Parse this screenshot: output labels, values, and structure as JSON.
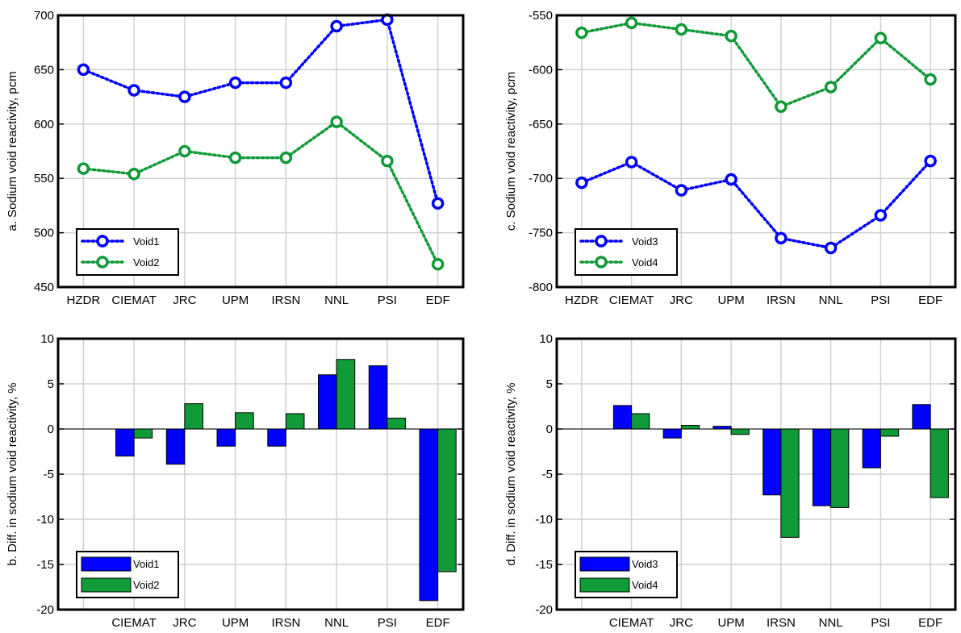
{
  "colors": {
    "series1": "#0000ff",
    "series2": "#119a38",
    "grid": "#d0d0d0",
    "axis": "#000000"
  },
  "chart_data": [
    {
      "id": "a",
      "type": "line",
      "ylabel": "a. Sodium void reactivity, pcm",
      "categories": [
        "HZDR",
        "CIEMAT",
        "JRC",
        "UPM",
        "IRSN",
        "NNL",
        "PSI",
        "EDF"
      ],
      "ylim": [
        450,
        700
      ],
      "yticks": [
        450,
        500,
        550,
        600,
        650,
        700
      ],
      "grid": true,
      "legend_position": "bottom-left",
      "series": [
        {
          "name": "Void1",
          "values": [
            650,
            631,
            625,
            638,
            638,
            690,
            696,
            527
          ]
        },
        {
          "name": "Void2",
          "values": [
            559,
            554,
            575,
            569,
            569,
            602,
            566,
            471
          ]
        }
      ]
    },
    {
      "id": "c",
      "type": "line",
      "ylabel": "c. Sodium void reactivity, pcm",
      "categories": [
        "HZDR",
        "CIEMAT",
        "JRC",
        "UPM",
        "IRSN",
        "NNL",
        "PSI",
        "EDF"
      ],
      "ylim": [
        -800,
        -550
      ],
      "yticks": [
        -800,
        -750,
        -700,
        -650,
        -600,
        -550
      ],
      "grid": true,
      "legend_position": "bottom-left",
      "series": [
        {
          "name": "Void3",
          "values": [
            -704,
            -685,
            -711,
            -701,
            -755,
            -764,
            -734,
            -684
          ]
        },
        {
          "name": "Void4",
          "values": [
            -566,
            -557,
            -563,
            -569,
            -634,
            -616,
            -571,
            -609
          ]
        }
      ]
    },
    {
      "id": "b",
      "type": "bar",
      "ylabel": "b. Diff. in sodium void reactivity, %",
      "categories": [
        "CIEMAT",
        "JRC",
        "UPM",
        "IRSN",
        "NNL",
        "PSI",
        "EDF"
      ],
      "ylim": [
        -20,
        10
      ],
      "yticks": [
        -20,
        -15,
        -10,
        -5,
        0,
        5,
        10
      ],
      "grid": true,
      "legend_position": "bottom-left",
      "series": [
        {
          "name": "Void1",
          "values": [
            -3.0,
            -3.9,
            -1.9,
            -1.9,
            6.0,
            7.0,
            -19.0
          ]
        },
        {
          "name": "Void2",
          "values": [
            -1.0,
            2.8,
            1.8,
            1.7,
            7.7,
            1.2,
            -15.8
          ]
        }
      ]
    },
    {
      "id": "d",
      "type": "bar",
      "ylabel": "d. Diff. in sodium void reactivity, %",
      "categories": [
        "CIEMAT",
        "JRC",
        "UPM",
        "IRSN",
        "NNL",
        "PSI",
        "EDF"
      ],
      "ylim": [
        -20,
        10
      ],
      "yticks": [
        -20,
        -15,
        -10,
        -5,
        0,
        5,
        10
      ],
      "grid": true,
      "legend_position": "bottom-left",
      "series": [
        {
          "name": "Void3",
          "values": [
            2.6,
            -1.0,
            0.3,
            -7.3,
            -8.5,
            -4.3,
            2.7
          ]
        },
        {
          "name": "Void4",
          "values": [
            1.7,
            0.4,
            -0.6,
            -12.0,
            -8.7,
            -0.8,
            -7.6
          ]
        }
      ]
    }
  ]
}
